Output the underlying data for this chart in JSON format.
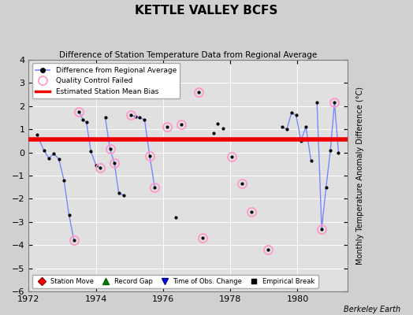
{
  "title": "KETTLE VALLEY BCFS",
  "subtitle": "Difference of Station Temperature Data from Regional Average",
  "ylabel": "Monthly Temperature Anomaly Difference (°C)",
  "credit": "Berkeley Earth",
  "xlim": [
    1972.0,
    1981.5
  ],
  "ylim": [
    -6,
    4
  ],
  "yticks": [
    -6,
    -5,
    -4,
    -3,
    -2,
    -1,
    0,
    1,
    2,
    3,
    4
  ],
  "xticks": [
    1972,
    1974,
    1976,
    1978,
    1980
  ],
  "bias_y": 0.55,
  "bias_color": "#ee0000",
  "line_color": "#7788ff",
  "dot_color": "#000000",
  "qc_color": "#ff99cc",
  "bg_color": "#e0e0e0",
  "fig_color": "#d0d0d0",
  "connected_segments": [
    [
      [
        1972.25,
        0.75
      ],
      [
        1972.45,
        0.1
      ],
      [
        1972.6,
        -0.25
      ],
      [
        1972.75,
        -0.05
      ],
      [
        1972.9,
        -0.3
      ],
      [
        1973.05,
        -1.2
      ],
      [
        1973.2,
        -2.7
      ],
      [
        1973.35,
        -3.8
      ]
    ],
    [
      [
        1973.5,
        1.75
      ],
      [
        1973.62,
        1.4
      ],
      [
        1973.72,
        1.3
      ],
      [
        1973.85,
        0.05
      ],
      [
        1974.0,
        -0.55
      ],
      [
        1974.12,
        -0.65
      ]
    ],
    [
      [
        1974.28,
        1.5
      ],
      [
        1974.42,
        0.15
      ],
      [
        1974.55,
        -0.45
      ],
      [
        1974.68,
        -1.75
      ],
      [
        1974.82,
        -1.85
      ]
    ],
    [
      [
        1975.05,
        1.6
      ],
      [
        1975.18,
        1.55
      ],
      [
        1975.3,
        1.5
      ],
      [
        1975.45,
        1.4
      ],
      [
        1975.6,
        -0.15
      ],
      [
        1975.75,
        -1.5
      ]
    ],
    [
      [
        1979.55,
        1.1
      ],
      [
        1979.68,
        1.0
      ],
      [
        1979.82,
        1.7
      ],
      [
        1979.96,
        1.6
      ],
      [
        1980.1,
        0.5
      ],
      [
        1980.25,
        1.1
      ],
      [
        1980.4,
        -0.35
      ]
    ],
    [
      [
        1980.58,
        2.15
      ],
      [
        1980.72,
        -3.3
      ],
      [
        1980.85,
        -1.5
      ],
      [
        1980.98,
        0.1
      ],
      [
        1981.1,
        2.15
      ],
      [
        1981.22,
        0.0
      ]
    ]
  ],
  "isolated_black_dots": [
    [
      1976.12,
      1.1
    ],
    [
      1976.55,
      1.2
    ],
    [
      1977.05,
      2.6
    ],
    [
      1977.18,
      -3.7
    ]
  ],
  "scatter_dots": [
    [
      1977.5,
      0.85
    ],
    [
      1977.62,
      1.25
    ],
    [
      1977.78,
      1.05
    ],
    [
      1978.05,
      -0.2
    ],
    [
      1978.35,
      -1.35
    ],
    [
      1978.62,
      -2.55
    ],
    [
      1979.12,
      -4.2
    ],
    [
      1976.38,
      -2.8
    ]
  ],
  "qc_circles": [
    [
      1973.35,
      -3.8
    ],
    [
      1973.5,
      1.75
    ],
    [
      1974.12,
      -0.65
    ],
    [
      1974.42,
      0.15
    ],
    [
      1974.55,
      -0.45
    ],
    [
      1975.05,
      1.6
    ],
    [
      1975.6,
      -0.15
    ],
    [
      1975.75,
      -1.5
    ],
    [
      1976.12,
      1.1
    ],
    [
      1976.55,
      1.2
    ],
    [
      1977.05,
      2.6
    ],
    [
      1977.18,
      -3.7
    ],
    [
      1978.05,
      -0.2
    ],
    [
      1978.35,
      -1.35
    ],
    [
      1978.62,
      -2.55
    ],
    [
      1979.12,
      -4.2
    ],
    [
      1980.72,
      -3.3
    ],
    [
      1981.1,
      2.15
    ]
  ]
}
